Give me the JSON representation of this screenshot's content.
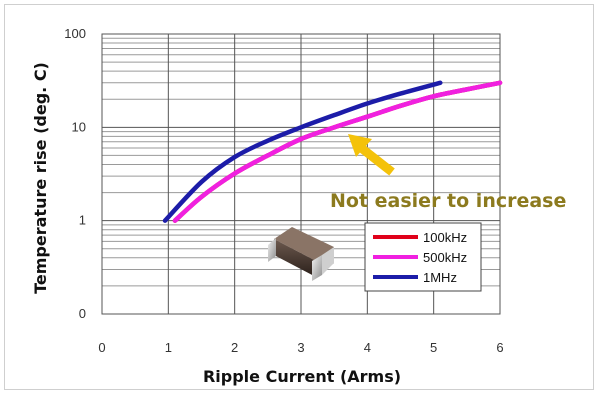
{
  "chart_data": {
    "type": "line",
    "xlabel": "Ripple Current (Arms)",
    "ylabel": "Temperature rise (deg. C)",
    "xlim": [
      0,
      6
    ],
    "ylim_log_decades": [
      "0",
      "1",
      "10",
      "100"
    ],
    "x_ticks": [
      "0",
      "1",
      "2",
      "3",
      "4",
      "5",
      "6"
    ],
    "y_ticks": [
      "100",
      "10",
      "1",
      "0"
    ],
    "grid": true,
    "legend_position": "inside-lower-right",
    "annotation": {
      "text": "Not easier to increase",
      "color": "#8c7a1e",
      "arrow_color": "#f4c20a"
    },
    "series": [
      {
        "name": "100kHz",
        "color": "#e0001b",
        "points": [
          [
            1.1,
            1.0
          ],
          [
            1.5,
            1.8
          ],
          [
            2.0,
            3.2
          ],
          [
            2.5,
            5.0
          ],
          [
            3.0,
            7.5
          ],
          [
            3.5,
            10.0
          ],
          [
            4.0,
            13.0
          ],
          [
            4.5,
            17.0
          ],
          [
            5.0,
            21.5
          ],
          [
            5.5,
            25.5
          ],
          [
            6.0,
            30.0
          ]
        ]
      },
      {
        "name": "500kHz",
        "color": "#f020e0",
        "points": [
          [
            1.1,
            1.0
          ],
          [
            1.5,
            1.8
          ],
          [
            2.0,
            3.2
          ],
          [
            2.5,
            5.0
          ],
          [
            3.0,
            7.5
          ],
          [
            3.5,
            10.0
          ],
          [
            4.0,
            13.0
          ],
          [
            4.5,
            17.0
          ],
          [
            5.0,
            21.5
          ],
          [
            5.5,
            25.5
          ],
          [
            6.0,
            30.0
          ]
        ]
      },
      {
        "name": "1MHz",
        "color": "#1c1ca8",
        "points": [
          [
            0.95,
            1.0
          ],
          [
            1.5,
            2.6
          ],
          [
            2.0,
            4.8
          ],
          [
            2.5,
            7.2
          ],
          [
            3.0,
            10.0
          ],
          [
            3.5,
            13.5
          ],
          [
            4.0,
            18.0
          ],
          [
            4.5,
            23.0
          ],
          [
            5.1,
            30.0
          ]
        ]
      }
    ]
  }
}
